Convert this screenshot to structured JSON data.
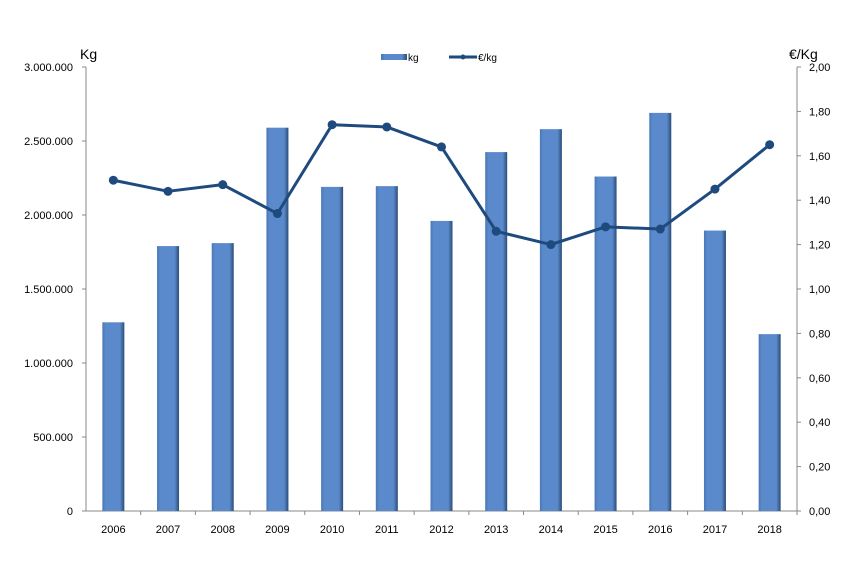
{
  "chart_data": {
    "type": "bar+line",
    "categories": [
      "2006",
      "2007",
      "2008",
      "2009",
      "2010",
      "2011",
      "2012",
      "2013",
      "2014",
      "2015",
      "2016",
      "2017",
      "2018"
    ],
    "series": [
      {
        "name": "kg",
        "type": "bar",
        "axis": "left",
        "color": "#5A8ACB",
        "values": [
          1275000,
          1790000,
          1810000,
          2590000,
          2190000,
          2195000,
          1960000,
          2425000,
          2580000,
          2260000,
          2690000,
          1895000,
          1195000
        ]
      },
      {
        "name": "€/kg",
        "type": "line",
        "axis": "right",
        "color": "#1F4A7E",
        "values": [
          1.49,
          1.44,
          1.47,
          1.34,
          1.74,
          1.73,
          1.64,
          1.26,
          1.2,
          1.28,
          1.27,
          1.45,
          1.65
        ]
      }
    ],
    "ylabel_left": "Kg",
    "ylabel_right": "€/Kg",
    "ylim_left": [
      0,
      3000000
    ],
    "ylim_right": [
      0,
      2.0
    ],
    "yticks_left": [
      "0",
      "500.000",
      "1.000.000",
      "1.500.000",
      "2.000.000",
      "2.500.000",
      "3.000.000"
    ],
    "yticks_right": [
      "0,00",
      "0,20",
      "0,40",
      "0,60",
      "0,80",
      "1,00",
      "1,20",
      "1,40",
      "1,60",
      "1,80",
      "2,00"
    ],
    "legend": {
      "placement": "top-center",
      "entries": [
        "kg",
        "€/kg"
      ]
    },
    "grid": false
  }
}
